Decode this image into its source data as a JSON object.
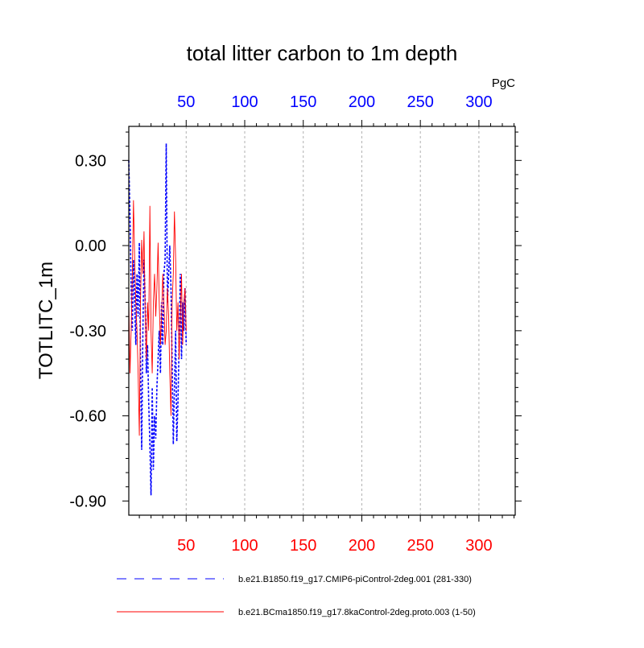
{
  "chart_data": {
    "type": "line",
    "title": "total litter carbon to 1m depth",
    "ylabel": "TOTLITC_1m",
    "units": "PgC",
    "xlim": [
      1,
      331
    ],
    "ylim": [
      -0.95,
      0.42
    ],
    "bottom_ticks": [
      50,
      100,
      150,
      200,
      250,
      300
    ],
    "top_ticks": [
      50,
      100,
      150,
      200,
      250,
      300
    ],
    "y_ticks": [
      0.3,
      0.0,
      -0.3,
      -0.6,
      -0.9
    ],
    "y_tick_labels": [
      "0.30",
      "0.00",
      "-0.30",
      "-0.60",
      "-0.90"
    ],
    "grid": "vertical dashed at major x ticks",
    "colors": {
      "bottom_axis_labels": "#ff0000",
      "top_axis_labels": "#0000ff",
      "series_dashed": "#0000ff",
      "series_solid": "#ff0000"
    },
    "series": [
      {
        "name": "b.e21.B1850.f19_g17.CMIP6-piControl-2deg.001 (281-330)",
        "style": "dashed",
        "color": "#0000ff",
        "x": [
          1,
          2,
          3,
          4,
          5,
          6,
          7,
          8,
          9,
          10,
          11,
          12,
          13,
          14,
          15,
          16,
          17,
          18,
          19,
          20,
          21,
          22,
          23,
          24,
          25,
          26,
          27,
          28,
          29,
          30,
          31,
          32,
          33,
          34,
          35,
          36,
          37,
          38,
          39,
          40,
          41,
          42,
          43,
          44,
          45,
          46,
          47,
          48,
          49,
          50
        ],
        "y": [
          0.3,
          0.1,
          -0.15,
          -0.3,
          -0.05,
          -0.2,
          -0.35,
          -0.1,
          -0.25,
          0.01,
          -0.4,
          -0.72,
          -0.3,
          -0.05,
          -0.2,
          -0.45,
          -0.35,
          -0.55,
          -0.7,
          -0.88,
          -0.5,
          -0.79,
          -0.6,
          -0.68,
          -0.5,
          -0.4,
          -0.3,
          -0.45,
          -0.2,
          -0.35,
          -0.1,
          -0.05,
          0.36,
          -0.2,
          -0.1,
          0.0,
          -0.15,
          -0.4,
          -0.7,
          -0.5,
          -0.3,
          -0.69,
          -0.55,
          -0.35,
          -0.1,
          -0.4,
          -0.2,
          -0.3,
          -0.15,
          -0.35
        ]
      },
      {
        "name": "b.e21.BCma1850.f19_g17.8kaControl-2deg.proto.003 (1-50)",
        "style": "solid",
        "color": "#ff0000",
        "x": [
          1,
          2,
          3,
          4,
          5,
          6,
          7,
          8,
          9,
          10,
          11,
          12,
          13,
          14,
          15,
          16,
          17,
          18,
          19,
          20,
          21,
          22,
          23,
          24,
          25,
          26,
          27,
          28,
          29,
          30,
          31,
          32,
          33,
          34,
          35,
          36,
          37,
          38,
          39,
          40,
          41,
          42,
          43,
          44,
          45,
          46,
          47,
          48,
          49,
          50
        ],
        "y": [
          -0.2,
          -0.45,
          -0.3,
          -0.1,
          0.16,
          -0.05,
          -0.2,
          -0.3,
          -0.45,
          -0.67,
          -0.2,
          0.02,
          -0.1,
          0.05,
          -0.25,
          -0.4,
          -0.2,
          -0.3,
          0.14,
          -0.3,
          -0.45,
          -0.2,
          -0.1,
          -0.25,
          -0.15,
          0.01,
          -0.2,
          -0.35,
          -0.25,
          -0.1,
          -0.2,
          -0.35,
          -0.3,
          -0.15,
          -0.25,
          -0.45,
          -0.6,
          -0.2,
          -0.1,
          0.12,
          -0.05,
          -0.3,
          -0.2,
          -0.4,
          -0.25,
          -0.1,
          -0.35,
          -0.2,
          -0.15,
          -0.3
        ]
      }
    ]
  }
}
